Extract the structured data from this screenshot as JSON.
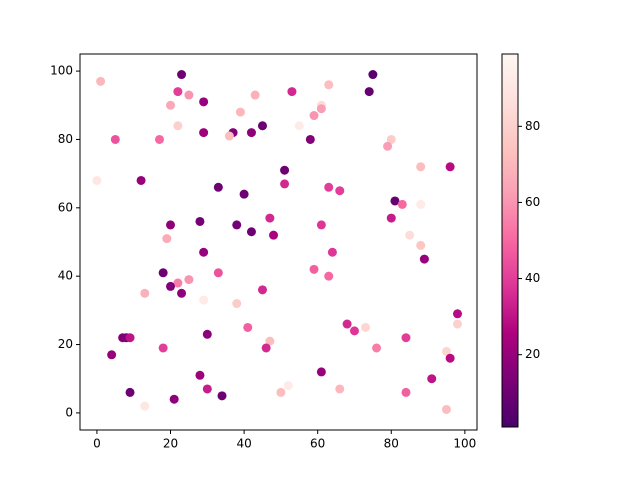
{
  "chart_data": {
    "type": "scatter",
    "x": [
      23,
      75,
      1,
      63,
      22,
      53,
      74,
      25,
      43,
      29,
      20,
      61,
      61,
      39,
      59,
      22,
      45,
      55,
      37,
      29,
      42,
      36,
      5,
      17,
      58,
      80,
      79,
      88,
      96,
      51,
      0,
      12,
      51,
      33,
      63,
      66,
      40,
      81,
      83,
      88,
      80,
      47,
      28,
      20,
      38,
      61,
      42,
      48,
      85,
      19,
      88,
      29,
      64,
      89,
      59,
      18,
      33,
      63,
      25,
      22,
      20,
      23,
      13,
      45,
      29,
      38,
      98,
      68,
      98,
      41,
      73,
      70,
      30,
      8,
      7,
      9,
      47,
      84,
      18,
      46,
      76,
      95,
      4,
      96,
      61,
      28,
      91,
      52,
      30,
      66,
      9,
      50,
      84,
      34,
      21,
      13,
      95
    ],
    "y": [
      99,
      99,
      97,
      96,
      94,
      94,
      94,
      93,
      93,
      91,
      90,
      90,
      89,
      88,
      87,
      84,
      84,
      84,
      82,
      82,
      82,
      81,
      80,
      80,
      80,
      80,
      78,
      72,
      72,
      71,
      68,
      68,
      67,
      66,
      66,
      65,
      64,
      62,
      61,
      61,
      57,
      57,
      56,
      55,
      55,
      55,
      53,
      52,
      52,
      51,
      49,
      47,
      47,
      45,
      42,
      41,
      41,
      40,
      39,
      38,
      37,
      35,
      35,
      36,
      33,
      32,
      29,
      26,
      26,
      25,
      25,
      24,
      23,
      22,
      22,
      22,
      21,
      22,
      19,
      19,
      19,
      18,
      17,
      16,
      12,
      11,
      10,
      8,
      7,
      7,
      6,
      6,
      6,
      5,
      4,
      2,
      1
    ],
    "c": [
      10,
      5,
      70,
      72,
      40,
      35,
      8,
      60,
      68,
      20,
      65,
      85,
      62,
      70,
      60,
      80,
      10,
      92,
      15,
      22,
      18,
      72,
      45,
      50,
      15,
      78,
      62,
      72,
      28,
      10,
      90,
      20,
      35,
      10,
      40,
      40,
      10,
      8,
      50,
      92,
      32,
      35,
      12,
      18,
      12,
      38,
      10,
      25,
      85,
      66,
      75,
      20,
      38,
      20,
      48,
      10,
      45,
      50,
      60,
      55,
      15,
      18,
      68,
      35,
      92,
      78,
      28,
      35,
      80,
      48,
      82,
      38,
      18,
      8,
      15,
      30,
      72,
      40,
      40,
      35,
      55,
      82,
      20,
      28,
      20,
      22,
      30,
      92,
      32,
      70,
      10,
      72,
      48,
      10,
      18,
      90,
      72
    ],
    "xlim": [
      -4.6,
      103.3
    ],
    "ylim": [
      -5,
      105
    ],
    "xticks": [
      0,
      20,
      40,
      60,
      80,
      100
    ],
    "yticks": [
      0,
      20,
      40,
      60,
      80,
      100
    ],
    "clim": [
      1,
      99
    ],
    "colorbar_ticks": [
      20,
      40,
      60,
      80
    ],
    "colormap": [
      "#49006a",
      "#7a0177",
      "#ae017e",
      "#dd3497",
      "#f768a1",
      "#fa9fb5",
      "#fcc5c0",
      "#fde0dd",
      "#fff7f3"
    ]
  }
}
